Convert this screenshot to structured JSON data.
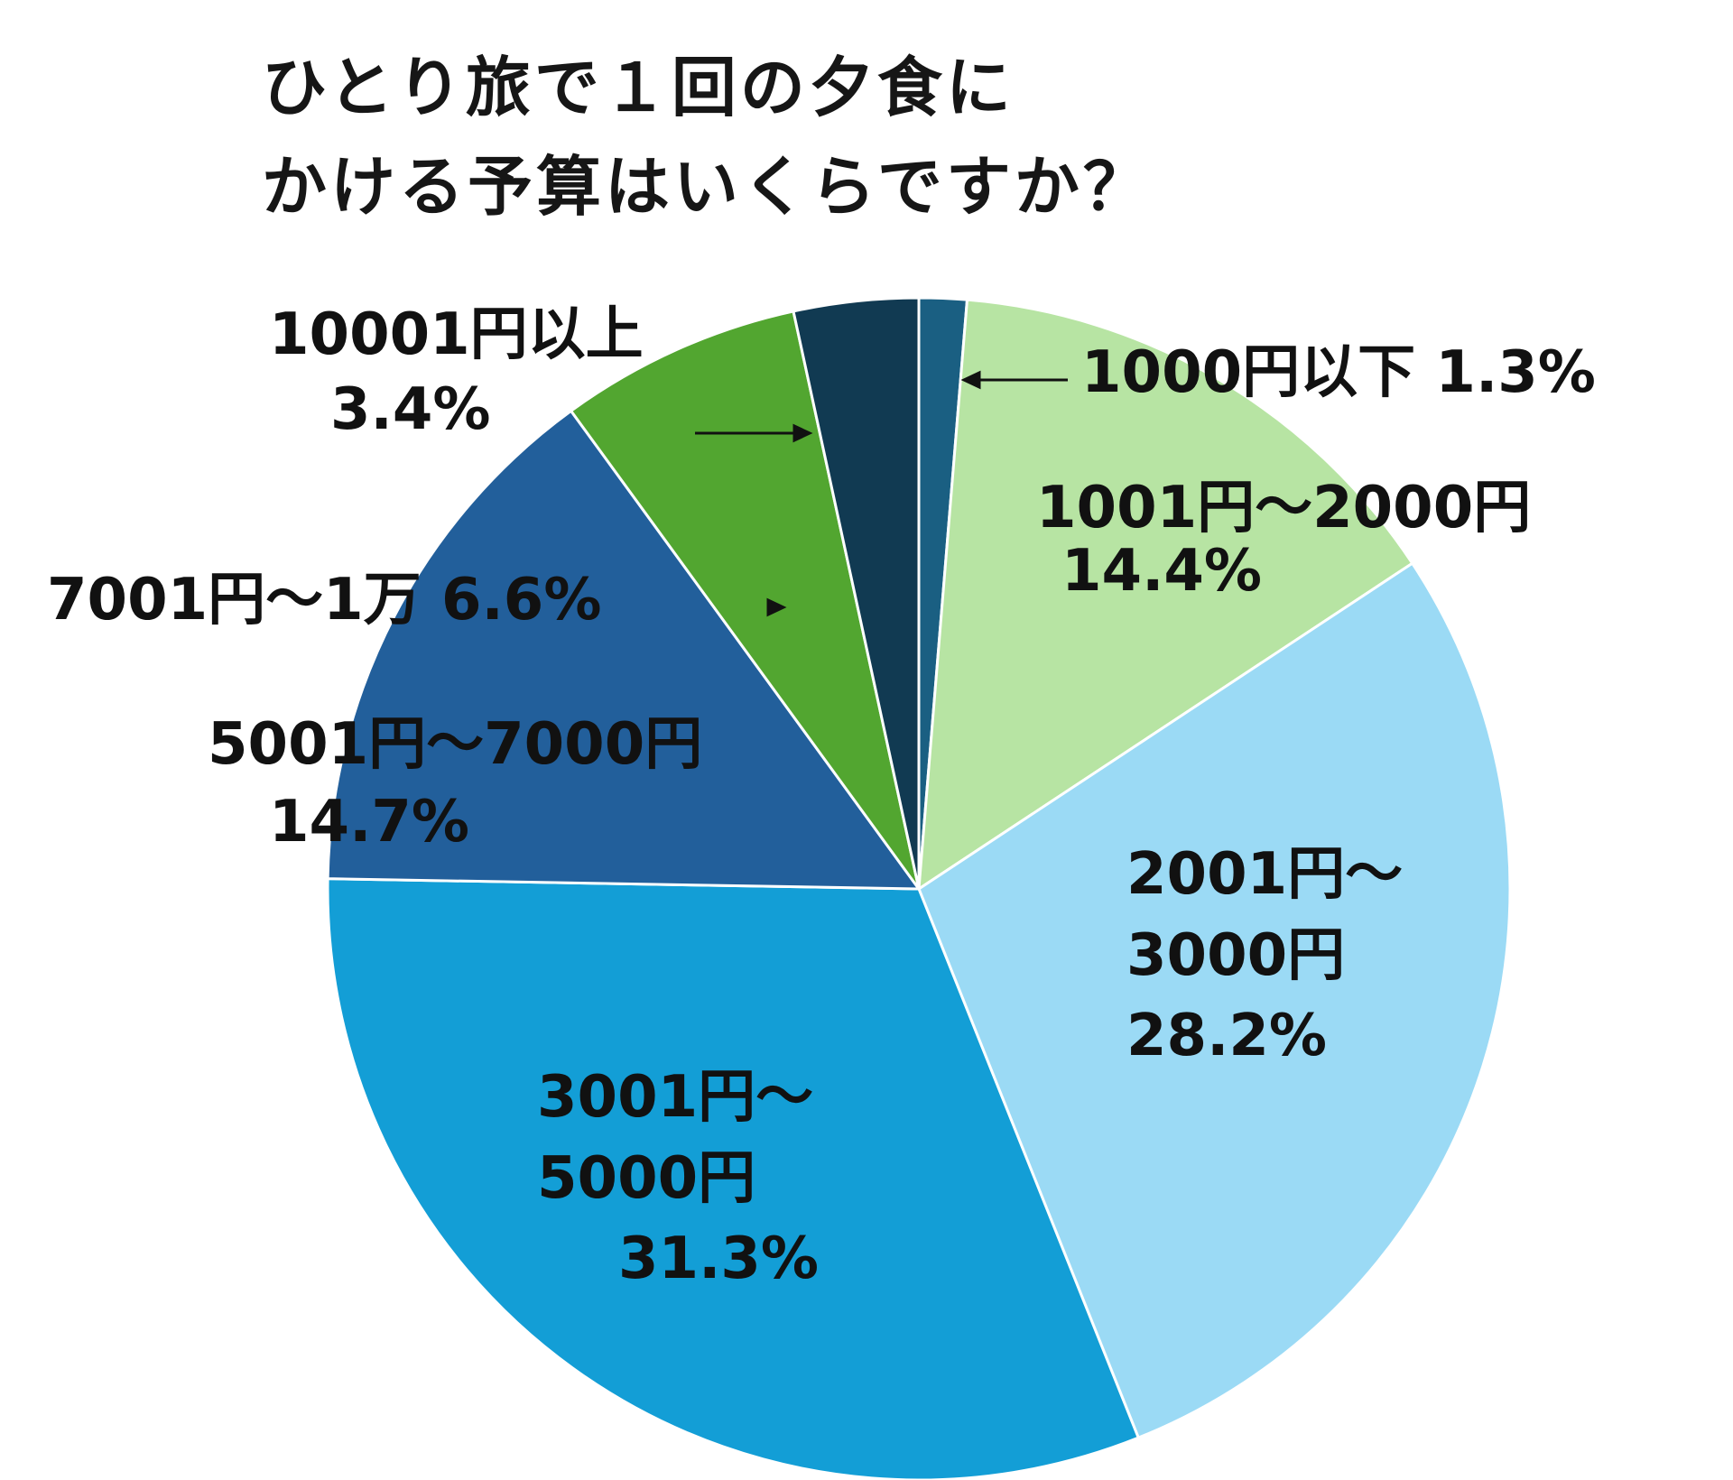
{
  "chart_data": {
    "type": "pie",
    "title_lines": [
      "ひとり旅で１回の夕食に",
      "かける予算はいくらですか？"
    ],
    "start_angle_deg": 0,
    "direction": "clockwise",
    "slices": [
      {
        "label": "1000円以下",
        "value": 1.3,
        "display": "1.3%",
        "color": "#1a5f82"
      },
      {
        "label": "1001円～2000円",
        "value": 14.4,
        "display": "14.4%",
        "color": "#b7e4a3"
      },
      {
        "label": "2001円～3000円",
        "label_lines": [
          "2001円～",
          "3000円"
        ],
        "value": 28.2,
        "display": "28.2%",
        "color": "#9bdaf5"
      },
      {
        "label": "3001円～5000円",
        "label_lines": [
          "3001円～",
          "5000円"
        ],
        "value": 31.3,
        "display": "31.3%",
        "color": "#139ed6"
      },
      {
        "label": "5001円～7000円",
        "value": 14.7,
        "display": "14.7%",
        "color": "#225f9b"
      },
      {
        "label": "7001円～1万",
        "value": 6.6,
        "display": "6.6%",
        "color": "#52a630"
      },
      {
        "label": "10001円以上",
        "value": 3.4,
        "display": "3.4%",
        "color": "#113a52"
      }
    ]
  }
}
